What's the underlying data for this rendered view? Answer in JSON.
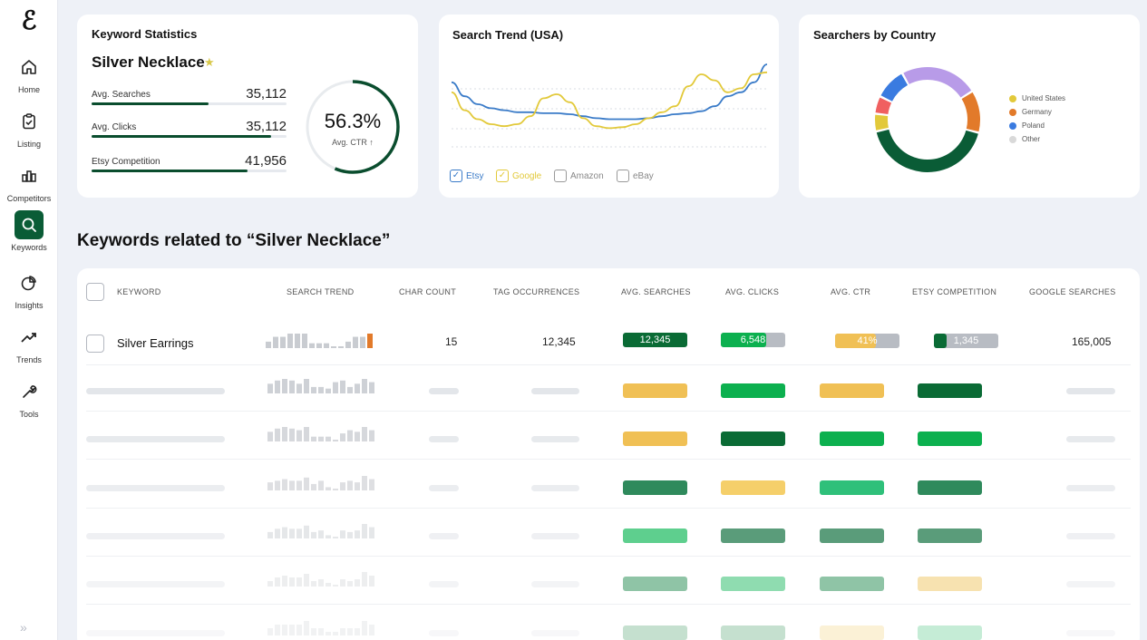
{
  "logo": "ℰ",
  "nav": [
    {
      "label": "Home",
      "icon": "home-icon"
    },
    {
      "label": "Listing",
      "icon": "clipboard-check-icon"
    },
    {
      "label": "Competitors",
      "icon": "bar-chart-icon"
    },
    {
      "label": "Keywords",
      "icon": "search-icon",
      "active": true
    },
    {
      "label": "Insights",
      "icon": "pie-chart-icon"
    },
    {
      "label": "Trends",
      "icon": "trend-up-icon"
    },
    {
      "label": "Tools",
      "icon": "wrench-icon"
    }
  ],
  "expand_icon": "»",
  "keyword_stats": {
    "title": "Keyword Statistics",
    "keyword": "Silver Necklace",
    "star": "★",
    "rows": [
      {
        "label": "Avg. Searches",
        "value": "35,112",
        "fill": 0.6
      },
      {
        "label": "Avg. Clicks",
        "value": "35,112",
        "fill": 0.92
      },
      {
        "label": "Etsy Competition",
        "value": "41,956",
        "fill": 0.8
      }
    ],
    "ctr_value": "56.3%",
    "ctr_label": "Avg. CTR ↑",
    "ctr_fraction": 0.563
  },
  "search_trend": {
    "title": "Search Trend (USA)",
    "legend": [
      {
        "label": "Etsy",
        "checked": true,
        "color": "#3a7bc8"
      },
      {
        "label": "Google",
        "checked": true,
        "color": "#e2c93a"
      },
      {
        "label": "Amazon",
        "checked": false,
        "color": "#888888"
      },
      {
        "label": "eBay",
        "checked": false,
        "color": "#888888"
      }
    ]
  },
  "searchers_by_country": {
    "title": "Searchers by Country",
    "legend": [
      {
        "label": "United States",
        "color": "#e2c93a"
      },
      {
        "label": "Germany",
        "color": "#e27a2a"
      },
      {
        "label": "Poland",
        "color": "#3a7be0"
      },
      {
        "label": "Other",
        "color": "#d9d9d9"
      }
    ]
  },
  "chart_data": [
    {
      "type": "line",
      "title": "Search Trend (USA)",
      "x": [
        0,
        1,
        2,
        3,
        4,
        5,
        6,
        7,
        8,
        9,
        10,
        11,
        12,
        13,
        14,
        15,
        16,
        17,
        18,
        19,
        20,
        21,
        22,
        23,
        24
      ],
      "series": [
        {
          "name": "Etsy",
          "values": [
            72,
            58,
            50,
            46,
            44,
            42,
            42,
            41,
            41,
            40,
            38,
            36,
            35,
            35,
            35,
            36,
            38,
            40,
            41,
            43,
            48,
            58,
            62,
            72,
            90
          ]
        },
        {
          "name": "Google",
          "values": [
            62,
            44,
            35,
            30,
            28,
            30,
            38,
            56,
            60,
            52,
            36,
            28,
            26,
            27,
            30,
            36,
            42,
            48,
            68,
            80,
            74,
            62,
            66,
            80,
            82
          ]
        }
      ],
      "ylim": [
        0,
        100
      ]
    },
    {
      "type": "pie",
      "title": "Searchers by Country",
      "donut": true,
      "slices": [
        {
          "label": "Dark green",
          "value": 39,
          "color": "#0a5c36"
        },
        {
          "label": "United States",
          "value": 5,
          "color": "#e2c93a"
        },
        {
          "label": "Red",
          "value": 5,
          "color": "#f06060"
        },
        {
          "label": "Poland",
          "value": 9,
          "color": "#3a7be0"
        },
        {
          "label": "Purple",
          "value": 22,
          "color": "#b89be8"
        },
        {
          "label": "Germany",
          "value": 12,
          "color": "#e27a2a"
        }
      ]
    }
  ],
  "section_title": "Keywords related to “Silver Necklace”",
  "table": {
    "headers": [
      "KEYWORD",
      "SEARCH TREND",
      "CHAR COUNT",
      "TAG OCCURRENCES",
      "AVG. SEARCHES",
      "AVG. CLICKS",
      "AVG. CTR",
      "ETSY COMPETITION",
      "GOOGLE SEARCHES"
    ],
    "first_row": {
      "keyword": "Silver Earrings",
      "spark": [
        4,
        7,
        7,
        9,
        9,
        9,
        3,
        3,
        3,
        1,
        1,
        4,
        7,
        7,
        9
      ],
      "char_count": "15",
      "tag_occurrences": "12,345",
      "avg_searches": "12,345",
      "avg_clicks": "6,548",
      "avg_ctr": "41%",
      "etsy_competition": "1,345",
      "google_searches": "165,005",
      "avg_searches_color": "#0a6b35",
      "avg_clicks_color": "#0cb04f",
      "avg_ctr_color": "#f0c055",
      "etsy_comp_color": "#0a6b35"
    },
    "skeleton_rows": [
      {
        "pills": [
          "#f0c055",
          "#0cb04f",
          "#f0c055",
          "#0a6b35"
        ],
        "opacity": 1
      },
      {
        "pills": [
          "#f0c055",
          "#0a6b35",
          "#0cb04f",
          "#0cb04f"
        ],
        "opacity": 1
      },
      {
        "pills": [
          "#2f8a5c",
          "#f5cf6a",
          "#2fc07a",
          "#2f8a5c"
        ],
        "opacity": 1
      },
      {
        "pills": [
          "#5ecf8e",
          "#5a9c7a",
          "#5a9c7a",
          "#5a9c7a"
        ],
        "opacity": 1
      },
      {
        "pills": [
          "#8fc4a6",
          "#8fdcb0",
          "#8fc4a6",
          "#f7e2b0"
        ],
        "opacity": 1
      },
      {
        "pills": [
          "#c5e0cf",
          "#c5e0cf",
          "#fbf1d6",
          "#c5ecd6"
        ],
        "opacity": 1
      }
    ]
  }
}
